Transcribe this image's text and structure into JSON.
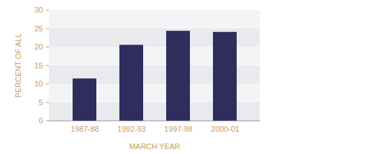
{
  "chart_data": {
    "type": "bar",
    "x_label": "MARCH YEAR",
    "y_label": "PERCENT OF ALL",
    "categories": [
      "1987-88",
      "1992-93",
      "1997-98",
      "2000-01"
    ],
    "values": [
      11.4,
      20.5,
      24.3,
      24.0
    ],
    "color": "#2e2d5c",
    "ylim": [
      0,
      30
    ],
    "yticks": [
      0,
      5,
      10,
      15,
      20,
      25,
      30
    ],
    "grid": true
  }
}
